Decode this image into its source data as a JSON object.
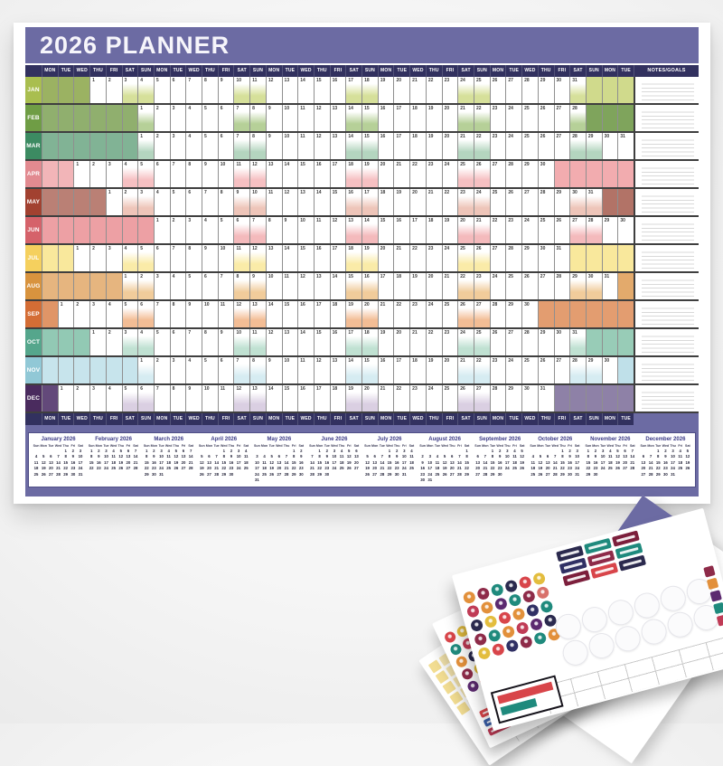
{
  "planner": {
    "title": "2026 PLANNER",
    "notes_label": "NOTES/GOALS",
    "day_names": [
      "MON",
      "TUE",
      "WED",
      "THU",
      "FRI",
      "SAT",
      "SUN"
    ],
    "total_day_columns": 37,
    "mini_day_names": [
      "Sun",
      "Mon",
      "Tue",
      "Wed",
      "Thu",
      "Fri",
      "Sat"
    ],
    "theme": {
      "band": "#6c6ba3",
      "header": "#32315f",
      "header_text": "#ffffff",
      "grid_line": "#3f3f3f",
      "cell_number": "#3a3a3a",
      "mini_title": "#3b3a85"
    },
    "months": [
      {
        "abbr": "JAN",
        "mini_title": "January 2026",
        "days": 31,
        "grid_offset_mon": 3,
        "mini_offset_sun": 4,
        "label_color": "#a9be4f",
        "fill_start": "#9bb262",
        "fill_end": "#d0da8c",
        "weekend_tint": "#d6e09a"
      },
      {
        "abbr": "FEB",
        "mini_title": "February 2026",
        "days": 28,
        "grid_offset_mon": 6,
        "mini_offset_sun": 0,
        "label_color": "#6f9d45",
        "fill_start": "#90af6e",
        "fill_end": "#7fa45c",
        "weekend_tint": "#b6d098"
      },
      {
        "abbr": "MAR",
        "mini_title": "March 2026",
        "days": 31,
        "grid_offset_mon": 6,
        "mini_offset_sun": 0,
        "label_color": "#3c8b62",
        "fill_start": "#81b395",
        "fill_end": "#8bbc9e",
        "weekend_tint": "#b4d5bf"
      },
      {
        "abbr": "APR",
        "mini_title": "April 2026",
        "days": 30,
        "grid_offset_mon": 2,
        "mini_offset_sun": 3,
        "label_color": "#e28a90",
        "fill_start": "#f2b5b8",
        "fill_end": "#f2acaf",
        "weekend_tint": "#f6c0c2"
      },
      {
        "abbr": "MAY",
        "mini_title": "May 2026",
        "days": 31,
        "grid_offset_mon": 4,
        "mini_offset_sun": 5,
        "label_color": "#a24130",
        "fill_start": "#ba8075",
        "fill_end": "#b27367",
        "weekend_tint": "#eec5b9"
      },
      {
        "abbr": "JUN",
        "mini_title": "June 2026",
        "days": 30,
        "grid_offset_mon": 7,
        "mini_offset_sun": 1,
        "label_color": "#d5626a",
        "fill_start": "#eda0a4",
        "fill_end": "#eda0a4",
        "weekend_tint": "#f4babc"
      },
      {
        "abbr": "JUL",
        "mini_title": "July 2026",
        "days": 31,
        "grid_offset_mon": 2,
        "mini_offset_sun": 3,
        "label_color": "#f5d05e",
        "fill_start": "#f9e89c",
        "fill_end": "#f9e89c",
        "weekend_tint": "#faeba8"
      },
      {
        "abbr": "AUG",
        "mini_title": "August 2026",
        "days": 31,
        "grid_offset_mon": 5,
        "mini_offset_sun": 6,
        "label_color": "#d8933e",
        "fill_start": "#e6b57f",
        "fill_end": "#e3aa6c",
        "weekend_tint": "#f1cc9b"
      },
      {
        "abbr": "SEP",
        "mini_title": "September 2026",
        "days": 30,
        "grid_offset_mon": 1,
        "mini_offset_sun": 2,
        "label_color": "#d46d35",
        "fill_start": "#e09567",
        "fill_end": "#e39d70",
        "weekend_tint": "#f3bd95"
      },
      {
        "abbr": "OCT",
        "mini_title": "October 2026",
        "days": 31,
        "grid_offset_mon": 3,
        "mini_offset_sun": 4,
        "label_color": "#55a68c",
        "fill_start": "#92c9b4",
        "fill_end": "#98ccb7",
        "weekend_tint": "#c0e1d2"
      },
      {
        "abbr": "NOV",
        "mini_title": "November 2026",
        "days": 30,
        "grid_offset_mon": 6,
        "mini_offset_sun": 0,
        "label_color": "#91c8d6",
        "fill_start": "#c7e4ec",
        "fill_end": "#bfe0e9",
        "weekend_tint": "#d6ecf2"
      },
      {
        "abbr": "DEC",
        "mini_title": "December 2026",
        "days": 31,
        "grid_offset_mon": 1,
        "mini_offset_sun": 2,
        "label_color": "#4a2b5e",
        "fill_start": "#63497a",
        "fill_end": "#8e81a7",
        "weekend_tint": "#dacfe2"
      }
    ]
  },
  "stickers": {
    "corner": {
      "color": "#6c6ba3",
      "letters": [
        "2",
        "N"
      ]
    },
    "front": {
      "circle_rows": [
        [
          "#e2903b",
          "#8e2b49",
          "#1f8a7d",
          "#2b2a4e",
          "#d8454a",
          "#e3bd3e"
        ],
        [
          "#c03b56",
          "#e2903b",
          "#5c2a70",
          "#1f8a7d",
          "#8e2b49",
          "#d8716b"
        ],
        [
          "#2b2a4e",
          "#e3bd3e",
          "#d8454a",
          "#e2903b",
          "#303064",
          "#1f8a7d"
        ],
        [
          "#8e2b49",
          "#1f8a7d",
          "#e2903b",
          "#c03b56",
          "#5c2a70",
          "#2b2a4e"
        ],
        [
          "#e3bd3e",
          "#d8454a",
          "#303064",
          "#8e2b49",
          "#1f8a7d",
          "#e2903b"
        ]
      ],
      "label_rects": [
        "#2b2a4e",
        "#1f8a7d",
        "#7c1f3c",
        "#303064",
        "#8e2b49",
        "#1f8a7d",
        "#7c1f3c",
        "#d8454a",
        "#2b2a4e"
      ],
      "side_squares": [
        "#8e2b49",
        "#e2903b",
        "#5c2a70",
        "#1f8a7d",
        "#c03b56"
      ],
      "white_circle_count": 12
    },
    "middle": {
      "circle_rows": [
        [
          "#d8454a",
          "#e3bd3e",
          "#1f8a7d",
          "#5c2a70",
          "#e2903b"
        ],
        [
          "#1f8a7d",
          "#c03b56",
          "#e2903b",
          "#8e2b49",
          "#303064"
        ],
        [
          "#e2903b",
          "#2b2a4e",
          "#d8454a",
          "#1f8a7d",
          "#5c2a70"
        ],
        [
          "#8e2b49",
          "#e3bd3e",
          "#303064",
          "#d8716b",
          "#1f8a7d"
        ],
        [
          "#5c2a70",
          "#d8454a",
          "#1f8a7d",
          "#e3bd3e",
          "#c03b56"
        ]
      ],
      "small_rects": [
        "#d8454a",
        "#3a5fa8",
        "#c03b56"
      ]
    },
    "back": {
      "strip_colors": [
        "#f2dd92",
        "#f6e6ae",
        "#f2dd92",
        "#f6e6ae",
        "#f2dd92",
        "#f6e6ae",
        "#f2dd92",
        "#f6e6ae",
        "#f2dd92",
        "#f6e6ae"
      ]
    }
  }
}
